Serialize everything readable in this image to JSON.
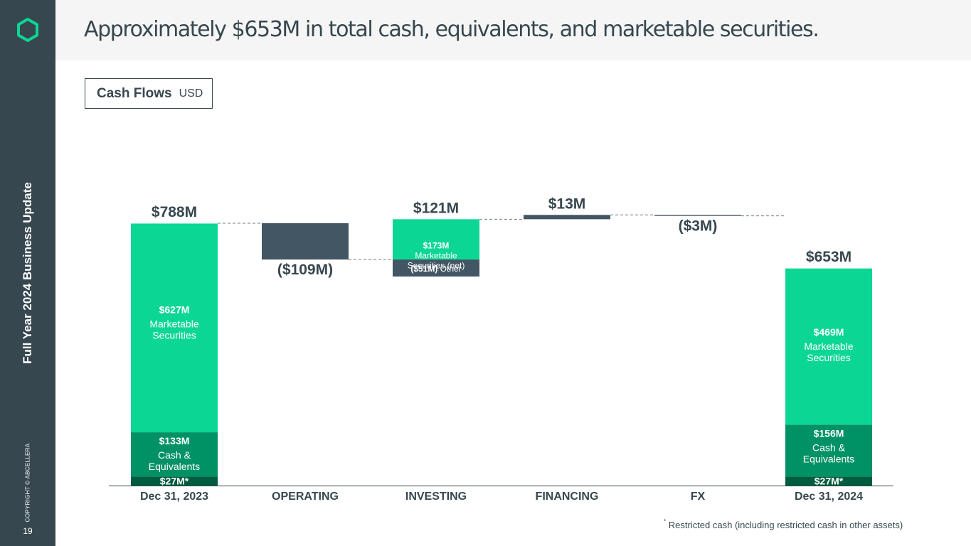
{
  "page": {
    "headline": "Approximately $653M in total cash, equivalents, and marketable securities.",
    "sidebar_title": "Full Year 2024 Business Update",
    "copyright": "COPYRIGHT © ABCELLERA",
    "page_number": "19",
    "footnote_marker": "*",
    "footnote": "Restricted cash (including restricted cash in other assets)"
  },
  "chip": {
    "title": "Cash Flows",
    "unit": "USD"
  },
  "colors": {
    "sidebar": "#37474f",
    "marketable": "#0cd694",
    "cash": "#009165",
    "restricted": "#005c3e",
    "negative": "#435663",
    "text": "#37474f"
  },
  "chart_data": {
    "type": "waterfall",
    "unit": "$M",
    "categories": [
      "Dec 31, 2023",
      "OPERATING",
      "INVESTING",
      "FINANCING",
      "FX",
      "Dec 31, 2024"
    ],
    "totals": [
      {
        "category": "Dec 31, 2023",
        "total": 788,
        "total_label": "$788M",
        "segments": [
          {
            "name": "restricted",
            "value": 27,
            "label": "$27M*"
          },
          {
            "name": "cash",
            "value": 133,
            "label": "$133M",
            "sublabel": "Cash & Equivalents"
          },
          {
            "name": "marketable",
            "value": 627,
            "label": "$627M",
            "sublabel": "Marketable Securities"
          }
        ]
      },
      {
        "category": "Dec 31, 2024",
        "total": 653,
        "total_label": "$653M",
        "segments": [
          {
            "name": "restricted",
            "value": 27,
            "label": "$27M*"
          },
          {
            "name": "cash",
            "value": 156,
            "label": "$156M",
            "sublabel": "Cash & Equivalents"
          },
          {
            "name": "marketable",
            "value": 469,
            "label": "$469M",
            "sublabel": "Marketable Securities"
          }
        ]
      }
    ],
    "changes": [
      {
        "category": "OPERATING",
        "value": -109,
        "label": "($109M)"
      },
      {
        "category": "INVESTING",
        "value": 121,
        "label": "$121M",
        "components": [
          {
            "value": -51,
            "label": "($51M)",
            "sublabel": "Other"
          },
          {
            "value": 173,
            "label": "$173M",
            "sublabel": "Marketable Securities (net)"
          }
        ]
      },
      {
        "category": "FINANCING",
        "value": 13,
        "label": "$13M"
      },
      {
        "category": "FX",
        "value": -3,
        "label": "($3M)"
      }
    ]
  }
}
